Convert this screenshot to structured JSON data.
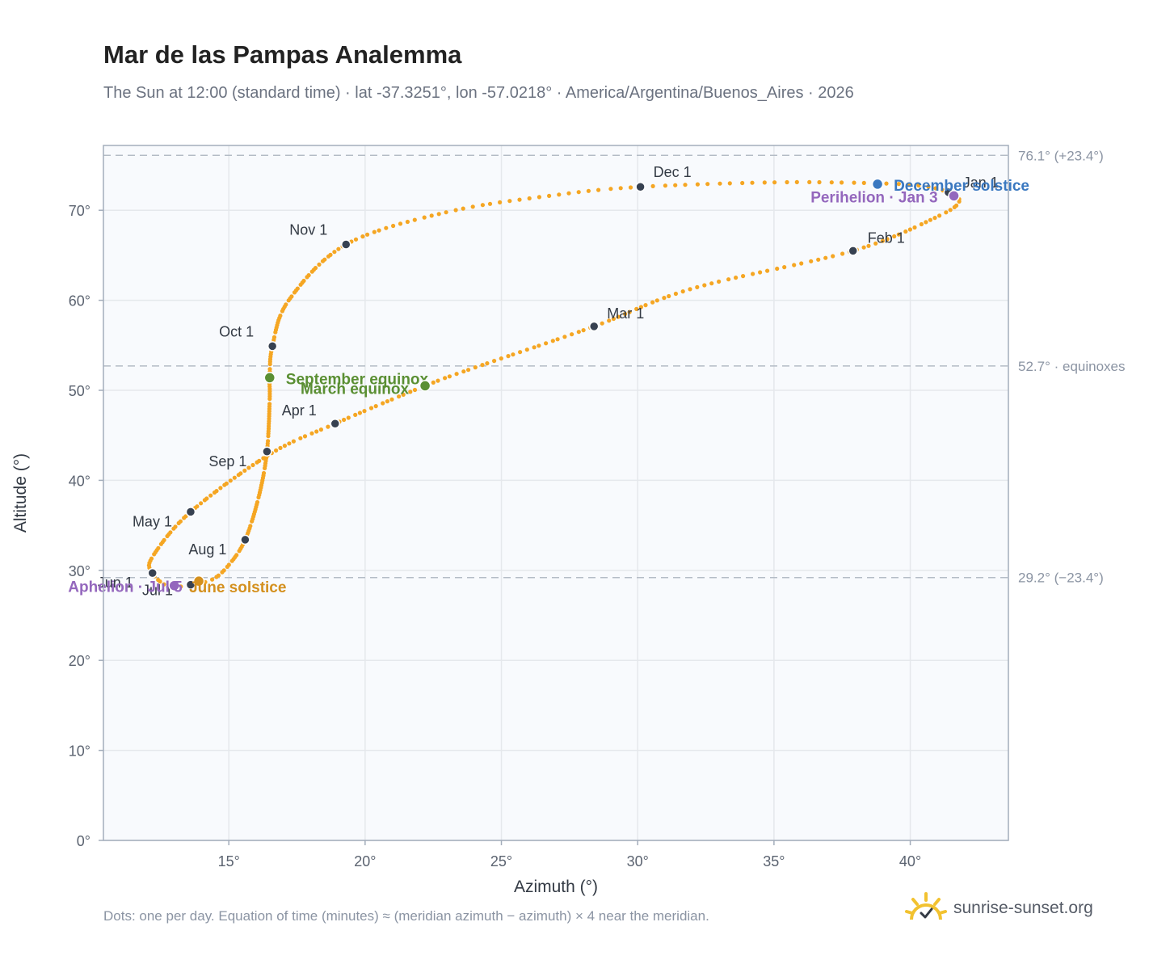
{
  "header": {
    "title": "Mar de las Pampas Analemma",
    "subtitle": "The Sun at 12:00 (standard time) · lat -37.3251°, lon -57.0218° · America/Argentina/Buenos_Aires · 2026"
  },
  "footer": {
    "note": "Dots: one per day. Equation of time (minutes) ≈ (meridian azimuth − azimuth) × 4 near the meridian.",
    "brand": "sunrise-sunset.org",
    "brand_icon": "sun-check-icon"
  },
  "colors": {
    "path": "#f5a623",
    "month_dot": "#374151",
    "equinox": "#5a8f33",
    "december_solstice": "#3a78c0",
    "june_solstice": "#d4901e",
    "apsis": "#9467bd",
    "reference_line": "#b4bcc6",
    "plot_bg": "#f8fafd",
    "grid": "#e5e8ec"
  },
  "chart_data": {
    "type": "scatter",
    "title": "Mar de las Pampas Analemma",
    "xlabel": "Azimuth (°)",
    "ylabel": "Altitude (°)",
    "xlim": [
      10.4,
      43.6
    ],
    "ylim": [
      0,
      77.2
    ],
    "x_ticks": [
      "15°",
      "20°",
      "25°",
      "30°",
      "35°",
      "40°"
    ],
    "x_tick_values": [
      15,
      20,
      25,
      30,
      35,
      40
    ],
    "y_ticks": [
      "0°",
      "10°",
      "20°",
      "30°",
      "40°",
      "50°",
      "60°",
      "70°"
    ],
    "y_tick_values": [
      0,
      10,
      20,
      30,
      40,
      50,
      60,
      70
    ],
    "grid": true,
    "series": [
      {
        "name": "",
        "note": "one dot per day",
        "points": [
          [
            41.4,
            71.9
          ],
          [
            41.8,
            71.0
          ],
          [
            41.0,
            69.3
          ],
          [
            37.9,
            65.5
          ],
          [
            32.0,
            61.3
          ],
          [
            28.4,
            57.1
          ],
          [
            24.0,
            52.5
          ],
          [
            22.2,
            50.5
          ],
          [
            18.9,
            46.3
          ],
          [
            16.5,
            42.9
          ],
          [
            13.6,
            36.5
          ],
          [
            12.2,
            31.5
          ],
          [
            12.2,
            29.7
          ],
          [
            12.8,
            28.2
          ],
          [
            13.6,
            28.4
          ],
          [
            14.4,
            29.0
          ],
          [
            15.0,
            30.6
          ],
          [
            15.6,
            33.4
          ],
          [
            16.1,
            38.2
          ],
          [
            16.4,
            43.2
          ],
          [
            16.5,
            49.0
          ],
          [
            16.5,
            51.4
          ],
          [
            16.6,
            54.9
          ],
          [
            17.2,
            60.0
          ],
          [
            19.3,
            66.2
          ],
          [
            23.0,
            69.8
          ],
          [
            27.0,
            71.7
          ],
          [
            30.1,
            72.6
          ],
          [
            35.0,
            73.1
          ],
          [
            38.8,
            73.0
          ],
          [
            40.5,
            72.7
          ],
          [
            41.4,
            72.0
          ]
        ]
      }
    ],
    "month_markers": [
      {
        "label": "Jan 1",
        "x": 41.4,
        "y": 72.0
      },
      {
        "label": "Feb 1",
        "x": 37.9,
        "y": 65.5
      },
      {
        "label": "Mar 1",
        "x": 28.4,
        "y": 57.1
      },
      {
        "label": "Apr 1",
        "x": 18.9,
        "y": 46.3
      },
      {
        "label": "May 1",
        "x": 13.6,
        "y": 36.5
      },
      {
        "label": "Jun 1",
        "x": 12.2,
        "y": 29.7
      },
      {
        "label": "Jul 1",
        "x": 13.6,
        "y": 28.4
      },
      {
        "label": "Aug 1",
        "x": 15.6,
        "y": 33.4
      },
      {
        "label": "Sep 1",
        "x": 16.4,
        "y": 43.2
      },
      {
        "label": "Oct 1",
        "x": 16.6,
        "y": 54.9
      },
      {
        "label": "Nov 1",
        "x": 19.3,
        "y": 66.2
      },
      {
        "label": "Dec 1",
        "x": 30.1,
        "y": 72.6
      }
    ],
    "events": [
      {
        "label": "September equinox",
        "x": 16.5,
        "y": 51.4,
        "color": "#5a8f33"
      },
      {
        "label": "March equinox",
        "x": 22.2,
        "y": 50.5,
        "color": "#5a8f33"
      },
      {
        "label": "December solstice",
        "x": 38.8,
        "y": 72.9,
        "color": "#3a78c0"
      },
      {
        "label": "June solstice",
        "x": 13.9,
        "y": 28.8,
        "color": "#d4901e"
      },
      {
        "label": "Perihelion · Jan 3",
        "x": 41.6,
        "y": 71.6,
        "color": "#9467bd"
      },
      {
        "label": "Aphelion · Jul 5",
        "x": 13.0,
        "y": 28.3,
        "color": "#9467bd"
      }
    ],
    "reference_lines": [
      {
        "label": "76.1° (+23.4°)",
        "y": 76.1
      },
      {
        "label": "52.7° · equinoxes",
        "y": 52.7
      },
      {
        "label": "29.2° (−23.4°)",
        "y": 29.2
      }
    ]
  }
}
